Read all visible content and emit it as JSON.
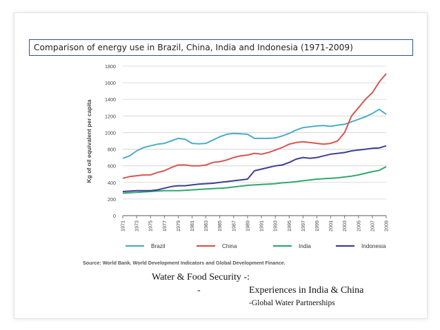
{
  "slide": {
    "title": "Comparison of energy use in Brazil, China, India and Indonesia (1971-2009)",
    "source": "Source: World Bank. World Development Indicators and Global Development Finance.",
    "caption_line1": "Water & Food Security -:",
    "caption_dash": "-",
    "caption_line2": "Experiences in India & China",
    "caption_line3": "-Global Water Partnerships"
  },
  "chart_data": {
    "type": "line",
    "title": "",
    "xlabel": "",
    "ylabel": "Kg of oil equivalent per capita",
    "ylim": [
      0,
      1800
    ],
    "yticks": [
      "0",
      "200",
      "400",
      "600",
      "800",
      "1000",
      "1200",
      "1400",
      "1600",
      "1800"
    ],
    "xticks": [
      "1971",
      "1973",
      "1975",
      "1977",
      "1979",
      "1981",
      "1983",
      "1985",
      "1987",
      "1989",
      "1991",
      "1993",
      "1995",
      "1997",
      "1999",
      "2001",
      "2003",
      "2005",
      "2007",
      "2009"
    ],
    "grid": true,
    "legend": "bottom",
    "x": [
      1971,
      1972,
      1973,
      1974,
      1975,
      1976,
      1977,
      1978,
      1979,
      1980,
      1981,
      1982,
      1983,
      1984,
      1985,
      1986,
      1987,
      1988,
      1989,
      1990,
      1991,
      1992,
      1993,
      1994,
      1995,
      1996,
      1997,
      1998,
      1999,
      2000,
      2001,
      2002,
      2003,
      2004,
      2005,
      2006,
      2007,
      2008,
      2009
    ],
    "series": [
      {
        "name": "Brazil",
        "color": "#4bacc6",
        "values": [
          690,
          720,
          780,
          820,
          840,
          860,
          870,
          900,
          930,
          920,
          870,
          865,
          870,
          910,
          950,
          980,
          990,
          985,
          980,
          930,
          930,
          930,
          935,
          960,
          990,
          1030,
          1060,
          1070,
          1080,
          1085,
          1075,
          1090,
          1100,
          1130,
          1160,
          1190,
          1230,
          1280,
          1220
        ]
      },
      {
        "name": "China",
        "color": "#d9534f",
        "values": [
          450,
          470,
          480,
          490,
          490,
          520,
          540,
          580,
          610,
          610,
          600,
          600,
          610,
          640,
          650,
          670,
          700,
          720,
          730,
          750,
          740,
          760,
          790,
          820,
          860,
          880,
          890,
          880,
          870,
          860,
          870,
          900,
          1000,
          1200,
          1300,
          1400,
          1480,
          1610,
          1710
        ]
      },
      {
        "name": "India",
        "color": "#2ea86e",
        "values": [
          270,
          275,
          280,
          285,
          290,
          295,
          300,
          300,
          300,
          305,
          310,
          315,
          320,
          325,
          330,
          335,
          345,
          355,
          365,
          370,
          375,
          380,
          385,
          395,
          400,
          410,
          420,
          430,
          440,
          445,
          450,
          455,
          465,
          475,
          490,
          510,
          530,
          545,
          590
        ]
      },
      {
        "name": "Indonesia",
        "color": "#3c3f8f",
        "values": [
          290,
          295,
          300,
          300,
          300,
          310,
          330,
          350,
          360,
          360,
          370,
          380,
          385,
          390,
          400,
          410,
          420,
          430,
          440,
          540,
          560,
          580,
          600,
          610,
          640,
          680,
          700,
          690,
          700,
          720,
          740,
          750,
          760,
          780,
          790,
          800,
          810,
          815,
          840
        ]
      }
    ]
  }
}
